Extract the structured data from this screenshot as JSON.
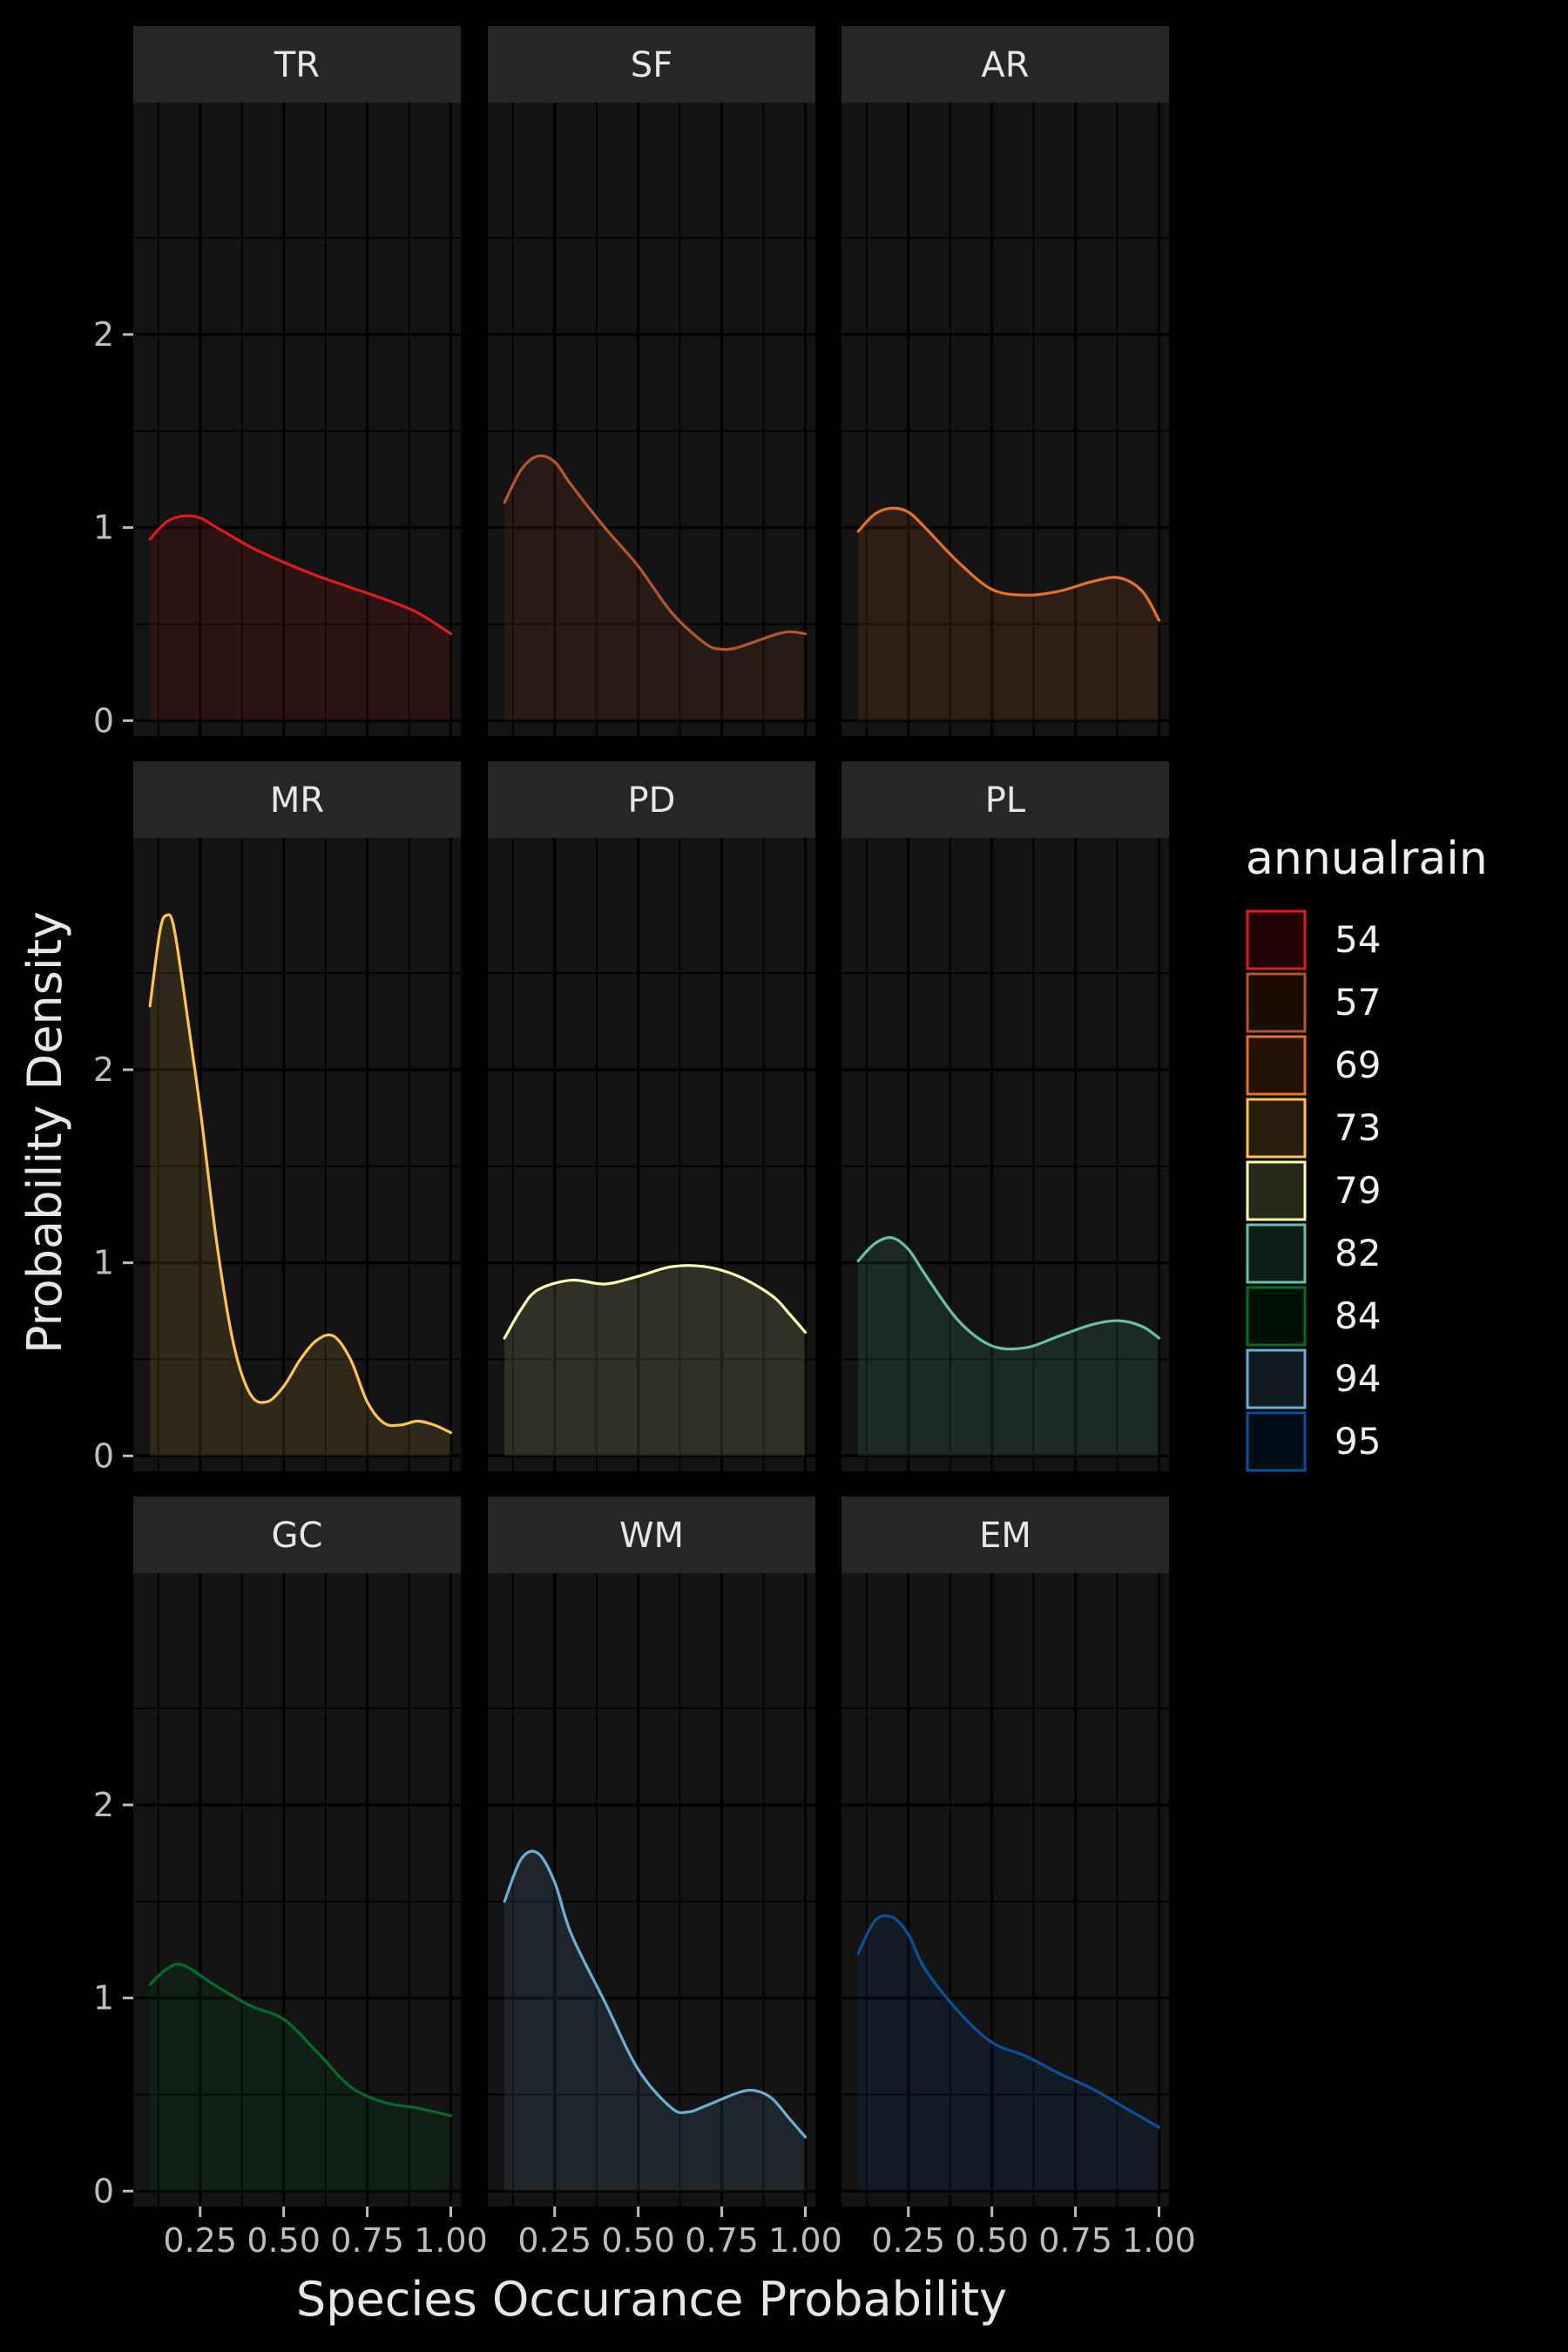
{
  "chart_data": {
    "type": "area",
    "subtype": "faceted density plot",
    "xlabel": "Species Occurance Probability",
    "ylabel": "Probability Density",
    "xlim": [
      0.05,
      1.03
    ],
    "ylim": [
      -0.08,
      3.2
    ],
    "x_ticks": [
      0.25,
      0.5,
      0.75,
      1.0
    ],
    "x_tick_labels": [
      "0.25",
      "0.50",
      "0.75",
      "1.00"
    ],
    "y_ticks": [
      0,
      1,
      2
    ],
    "y_tick_labels": [
      "0",
      "1",
      "2"
    ],
    "grid": true,
    "facet_layout": {
      "rows": 3,
      "cols": 3
    },
    "legend": {
      "title": "annualrain",
      "position": "right",
      "entries": [
        {
          "label": "54",
          "color": "#e31a1c"
        },
        {
          "label": "57",
          "color": "#b5562b"
        },
        {
          "label": "69",
          "color": "#e8731f"
        },
        {
          "label": "73",
          "color": "#fec44f"
        },
        {
          "label": "79",
          "color": "#ffffb2"
        },
        {
          "label": "82",
          "color": "#66c2a4"
        },
        {
          "label": "84",
          "color": "#006d2c"
        },
        {
          "label": "94",
          "color": "#6baed6"
        },
        {
          "label": "95",
          "color": "#08519c"
        }
      ]
    },
    "panels": [
      {
        "label": "TR",
        "annualrain": "54",
        "color": "#e31a1c",
        "x": [
          0.1,
          0.15,
          0.2,
          0.25,
          0.3,
          0.4,
          0.5,
          0.6,
          0.7,
          0.8,
          0.9,
          1.0
        ],
        "y": [
          0.94,
          1.03,
          1.06,
          1.05,
          1.0,
          0.9,
          0.82,
          0.75,
          0.69,
          0.63,
          0.56,
          0.45
        ]
      },
      {
        "label": "SF",
        "annualrain": "57",
        "color": "#b5562b",
        "x": [
          0.1,
          0.15,
          0.2,
          0.25,
          0.3,
          0.4,
          0.5,
          0.6,
          0.7,
          0.75,
          0.8,
          0.9,
          0.95,
          1.0
        ],
        "y": [
          1.13,
          1.3,
          1.37,
          1.34,
          1.22,
          1.0,
          0.8,
          0.56,
          0.4,
          0.37,
          0.38,
          0.44,
          0.46,
          0.45
        ]
      },
      {
        "label": "AR",
        "annualrain": "69",
        "color": "#e8731f",
        "x": [
          0.1,
          0.15,
          0.2,
          0.25,
          0.3,
          0.4,
          0.5,
          0.6,
          0.7,
          0.8,
          0.88,
          0.95,
          1.0
        ],
        "y": [
          0.98,
          1.07,
          1.1,
          1.08,
          1.0,
          0.82,
          0.68,
          0.65,
          0.67,
          0.72,
          0.74,
          0.67,
          0.52
        ]
      },
      {
        "label": "MR",
        "annualrain": "73",
        "color": "#fec44f",
        "x": [
          0.1,
          0.13,
          0.15,
          0.17,
          0.2,
          0.25,
          0.3,
          0.35,
          0.4,
          0.45,
          0.5,
          0.55,
          0.6,
          0.65,
          0.7,
          0.75,
          0.8,
          0.85,
          0.9,
          0.95,
          1.0
        ],
        "y": [
          2.33,
          2.72,
          2.8,
          2.75,
          2.42,
          1.8,
          1.1,
          0.58,
          0.32,
          0.28,
          0.36,
          0.5,
          0.6,
          0.62,
          0.5,
          0.28,
          0.17,
          0.16,
          0.18,
          0.16,
          0.12
        ]
      },
      {
        "label": "PD",
        "annualrain": "79",
        "color": "#ffffb2",
        "x": [
          0.1,
          0.15,
          0.2,
          0.3,
          0.4,
          0.5,
          0.6,
          0.7,
          0.8,
          0.9,
          0.95,
          1.0
        ],
        "y": [
          0.61,
          0.76,
          0.86,
          0.91,
          0.89,
          0.93,
          0.98,
          0.98,
          0.93,
          0.83,
          0.74,
          0.64
        ]
      },
      {
        "label": "PL",
        "annualrain": "82",
        "color": "#66c2a4",
        "x": [
          0.1,
          0.15,
          0.2,
          0.25,
          0.3,
          0.4,
          0.5,
          0.6,
          0.7,
          0.8,
          0.88,
          0.95,
          1.0
        ],
        "y": [
          1.01,
          1.1,
          1.13,
          1.07,
          0.94,
          0.7,
          0.57,
          0.56,
          0.62,
          0.68,
          0.7,
          0.67,
          0.61
        ]
      },
      {
        "label": "GC",
        "annualrain": "84",
        "color": "#006d2c",
        "x": [
          0.1,
          0.15,
          0.2,
          0.3,
          0.4,
          0.5,
          0.6,
          0.7,
          0.8,
          0.9,
          1.0
        ],
        "y": [
          1.07,
          1.15,
          1.17,
          1.06,
          0.96,
          0.89,
          0.72,
          0.54,
          0.46,
          0.43,
          0.39
        ]
      },
      {
        "label": "WM",
        "annualrain": "94",
        "color": "#6baed6",
        "x": [
          0.1,
          0.15,
          0.2,
          0.25,
          0.3,
          0.4,
          0.5,
          0.6,
          0.65,
          0.7,
          0.8,
          0.85,
          0.9,
          0.95,
          1.0
        ],
        "y": [
          1.5,
          1.72,
          1.75,
          1.6,
          1.33,
          0.98,
          0.63,
          0.43,
          0.41,
          0.44,
          0.51,
          0.52,
          0.48,
          0.38,
          0.28
        ]
      },
      {
        "label": "EM",
        "annualrain": "95",
        "color": "#08519c",
        "x": [
          0.1,
          0.15,
          0.2,
          0.25,
          0.3,
          0.4,
          0.5,
          0.6,
          0.7,
          0.8,
          0.9,
          1.0
        ],
        "y": [
          1.23,
          1.4,
          1.42,
          1.33,
          1.15,
          0.93,
          0.77,
          0.7,
          0.61,
          0.53,
          0.43,
          0.33
        ]
      }
    ]
  }
}
